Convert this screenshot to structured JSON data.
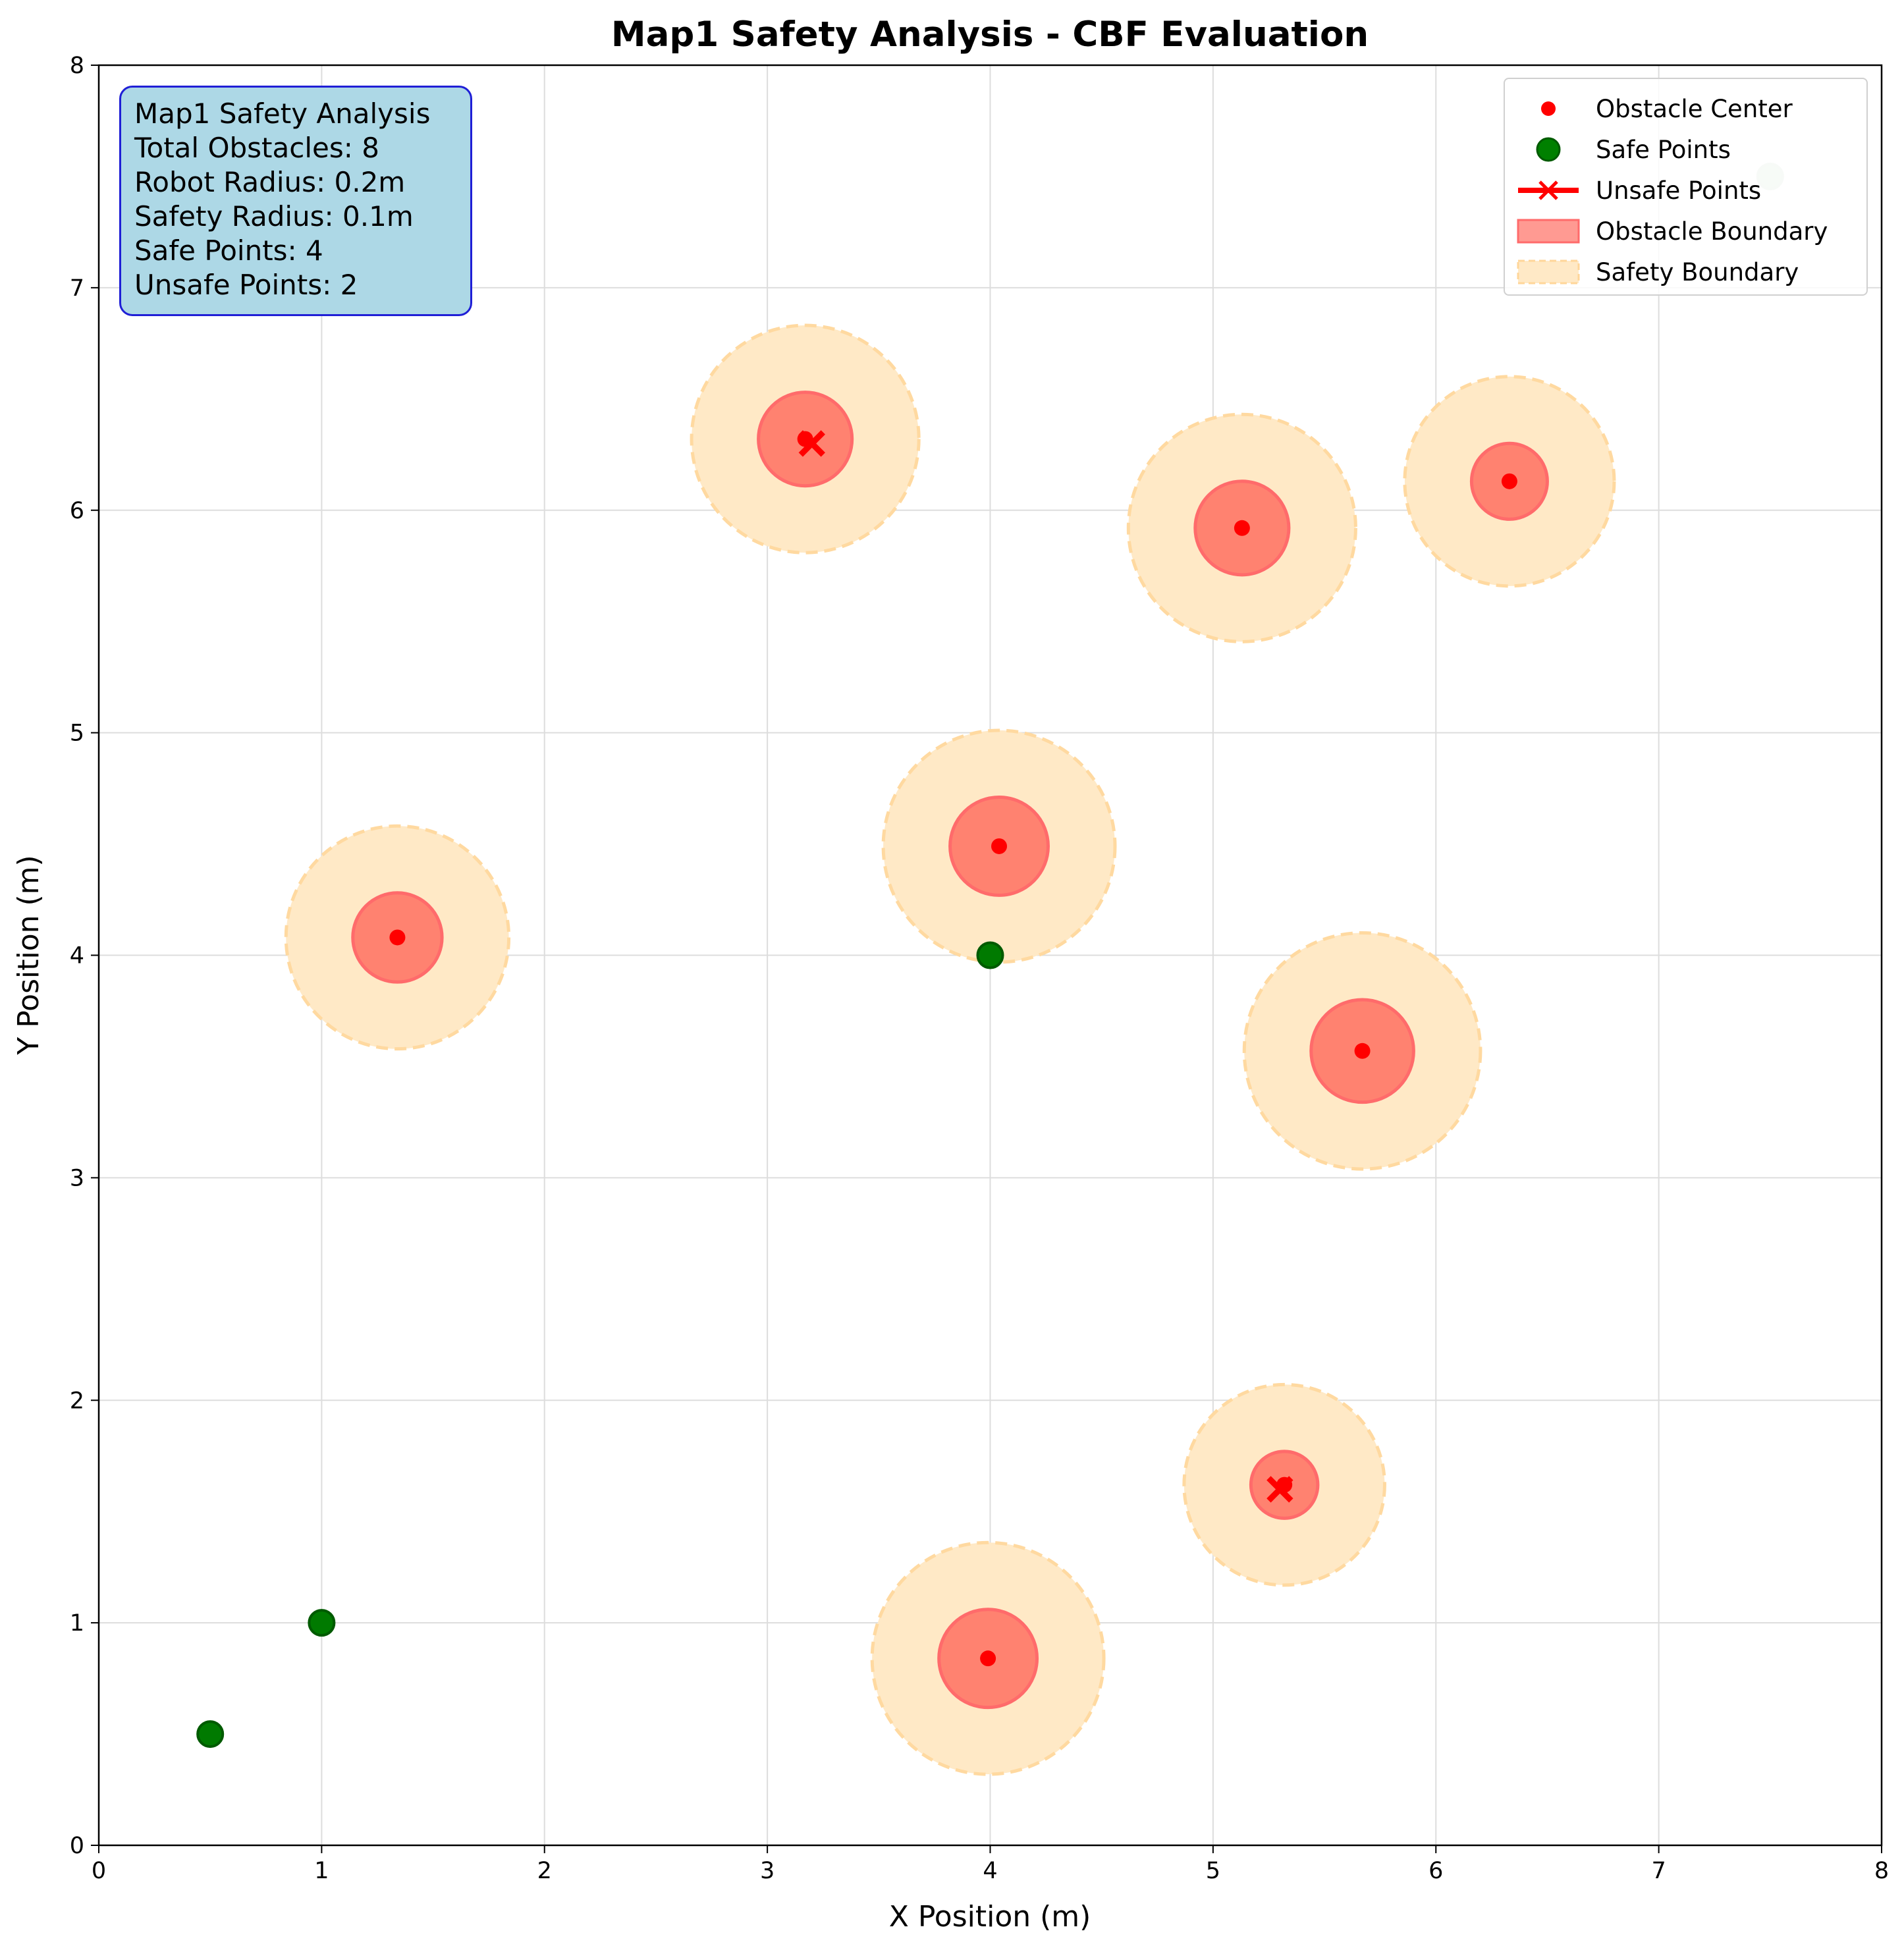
{
  "chart_data": {
    "type": "scatter",
    "title": "Map1 Safety Analysis - CBF Evaluation",
    "xlabel": "X Position (m)",
    "ylabel": "Y Position (m)",
    "xlim": [
      0,
      8
    ],
    "ylim": [
      0,
      8
    ],
    "xticks": [
      "0",
      "1",
      "2",
      "3",
      "4",
      "5",
      "6",
      "7",
      "8"
    ],
    "yticks": [
      "0",
      "1",
      "2",
      "3",
      "4",
      "5",
      "6",
      "7",
      "8"
    ],
    "grid": true,
    "legend_position": "top-right",
    "obstacles": [
      {
        "x": 3.17,
        "y": 6.32,
        "radius": 0.21,
        "safety_radius": 0.51
      },
      {
        "x": 5.13,
        "y": 5.92,
        "radius": 0.21,
        "safety_radius": 0.51
      },
      {
        "x": 6.33,
        "y": 6.13,
        "radius": 0.17,
        "safety_radius": 0.47
      },
      {
        "x": 4.04,
        "y": 4.49,
        "radius": 0.22,
        "safety_radius": 0.52
      },
      {
        "x": 1.34,
        "y": 4.08,
        "radius": 0.2,
        "safety_radius": 0.5
      },
      {
        "x": 5.67,
        "y": 3.57,
        "radius": 0.23,
        "safety_radius": 0.53
      },
      {
        "x": 5.32,
        "y": 1.62,
        "radius": 0.15,
        "safety_radius": 0.45
      },
      {
        "x": 3.99,
        "y": 0.84,
        "radius": 0.22,
        "safety_radius": 0.52
      }
    ],
    "safe_points": [
      {
        "x": 0.5,
        "y": 0.5
      },
      {
        "x": 1.0,
        "y": 1.0
      },
      {
        "x": 4.0,
        "y": 4.0
      },
      {
        "x": 7.5,
        "y": 7.5
      }
    ],
    "unsafe_points": [
      {
        "x": 3.2,
        "y": 6.3
      },
      {
        "x": 5.3,
        "y": 1.6
      }
    ],
    "legend": [
      {
        "label": "Obstacle Center",
        "key": "obstacle_center"
      },
      {
        "label": "Safe Points",
        "key": "safe_points"
      },
      {
        "label": "Unsafe Points",
        "key": "unsafe_points"
      },
      {
        "label": "Obstacle Boundary",
        "key": "obstacle_boundary"
      },
      {
        "label": "Safety Boundary",
        "key": "safety_boundary"
      }
    ],
    "colors": {
      "obstacle_center": "#ff0000",
      "obstacle_fill": "#ff7060",
      "safety_fill": "#ffe9c6",
      "safe_point": "#007a00",
      "unsafe_point": "#ff0000"
    }
  },
  "info_box": {
    "lines": [
      "Map1 Safety Analysis",
      "Total Obstacles: 8",
      "Robot Radius: 0.2m",
      "Safety Radius: 0.1m",
      "Safe Points: 4",
      "Unsafe Points: 2"
    ]
  }
}
